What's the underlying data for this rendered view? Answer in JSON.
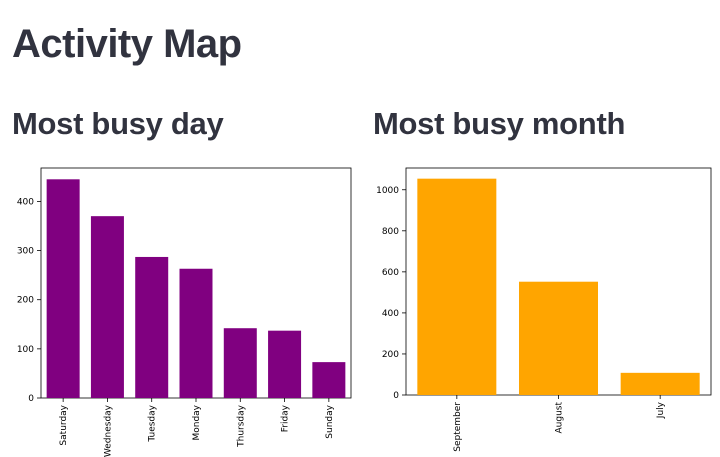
{
  "page": {
    "title": "Activity Map",
    "left_subtitle": "Most busy day",
    "right_subtitle": "Most busy month"
  },
  "chart_data": [
    {
      "type": "bar",
      "title": "Most busy day",
      "categories": [
        "Saturday",
        "Wednesday",
        "Tuesday",
        "Monday",
        "Thursday",
        "Friday",
        "Sunday"
      ],
      "values": [
        445,
        370,
        287,
        263,
        142,
        137,
        73
      ],
      "ylim": [
        0,
        468
      ],
      "yticks": [
        0,
        100,
        200,
        300,
        400
      ],
      "xlabel": "",
      "ylabel": "",
      "color": "#800080"
    },
    {
      "type": "bar",
      "title": "Most busy month",
      "categories": [
        "September",
        "August",
        "July"
      ],
      "values": [
        1054,
        552,
        108
      ],
      "ylim": [
        0,
        1106
      ],
      "yticks": [
        0,
        200,
        400,
        600,
        800,
        1000
      ],
      "xlabel": "",
      "ylabel": "",
      "color": "#ffa500"
    }
  ]
}
